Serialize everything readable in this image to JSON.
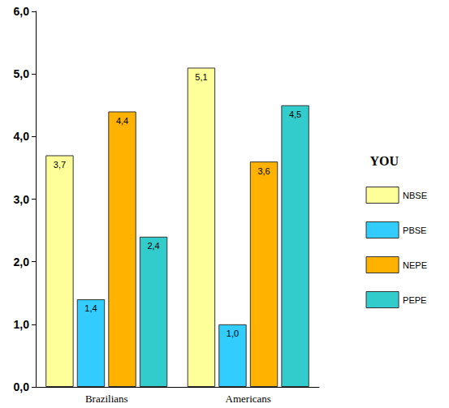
{
  "chart_data": {
    "type": "bar",
    "categories": [
      "Brazilians",
      "Americans"
    ],
    "legend_title": "YOU",
    "legend": "right",
    "data_labels": true,
    "grid": false,
    "ylim": [
      0,
      6
    ],
    "yticks": [
      {
        "value": 0,
        "label": "0,0"
      },
      {
        "value": 1,
        "label": "1,0"
      },
      {
        "value": 2,
        "label": "2,0"
      },
      {
        "value": 3,
        "label": "3,0"
      },
      {
        "value": 4,
        "label": "4,0"
      },
      {
        "value": 5,
        "label": "5,0"
      },
      {
        "value": 6,
        "label": "6,0"
      }
    ],
    "series": [
      {
        "name": "NBSE",
        "color": "#ffff99",
        "values": [
          3.7,
          5.1
        ],
        "value_labels": [
          "3,7",
          "5,1"
        ]
      },
      {
        "name": "PBSE",
        "color": "#33ccff",
        "values": [
          1.4,
          1.0
        ],
        "value_labels": [
          "1,4",
          "1,0"
        ]
      },
      {
        "name": "NEPE",
        "color": "#ffb300",
        "values": [
          4.4,
          3.6
        ],
        "value_labels": [
          "4,4",
          "3,6"
        ]
      },
      {
        "name": "PEPE",
        "color": "#33cccc",
        "values": [
          2.4,
          4.5
        ],
        "value_labels": [
          "2,4",
          "4,5"
        ]
      }
    ]
  }
}
